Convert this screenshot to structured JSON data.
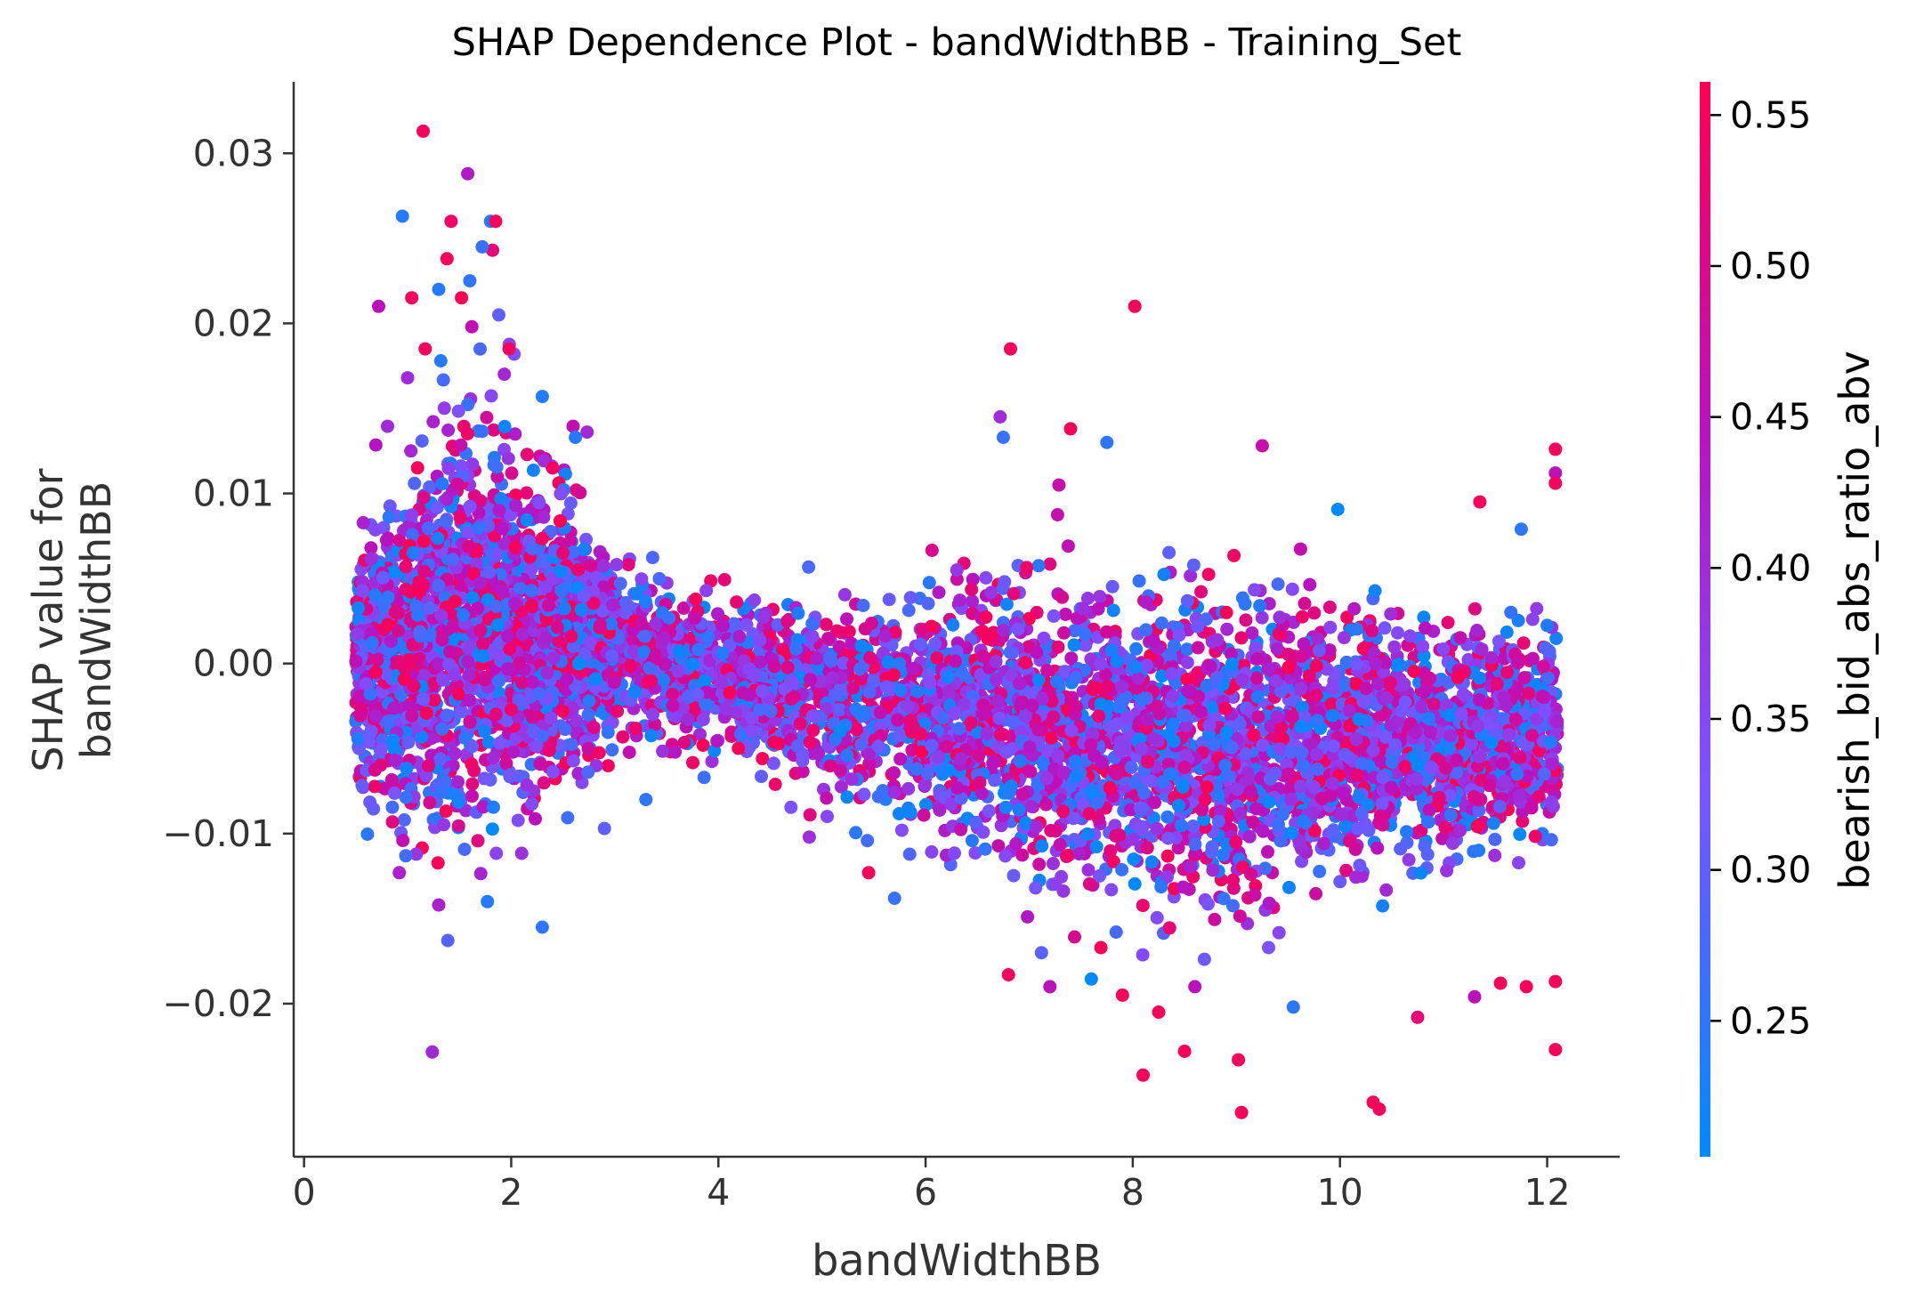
{
  "chart_data": {
    "type": "scatter",
    "title": "SHAP Dependence Plot - bandWidthBB - Training_Set",
    "xlabel": "bandWidthBB",
    "ylabel_lines": [
      "SHAP value for",
      "bandWidthBB"
    ],
    "xlim": [
      -0.1,
      12.7
    ],
    "ylim": [
      -0.029,
      0.0342
    ],
    "x_ticks": [
      0,
      2,
      4,
      6,
      8,
      10,
      12
    ],
    "x_tick_labels": [
      "0",
      "2",
      "4",
      "6",
      "8",
      "10",
      "12"
    ],
    "y_ticks": [
      0.03,
      0.02,
      0.01,
      0.0,
      -0.01,
      -0.02
    ],
    "y_tick_labels": [
      "0.03",
      "0.02",
      "0.01",
      "0.00",
      "−0.01",
      "−0.02"
    ],
    "colorbar": {
      "label": "bearish_bid_abs_ratio_abv",
      "range": [
        0.205,
        0.561
      ],
      "ticks": [
        0.55,
        0.5,
        0.45,
        0.4,
        0.35,
        0.3,
        0.25
      ],
      "tick_labels": [
        "0.55",
        "0.50",
        "0.45",
        "0.40",
        "0.35",
        "0.30",
        "0.25"
      ],
      "colors": [
        "#008afb",
        "#7c52ff",
        "#b911be",
        "#ff0052"
      ]
    },
    "approximate_points": true,
    "series_envelope": [
      {
        "x": 0.5,
        "mean": 0.0,
        "spread": 0.0055
      },
      {
        "x": 1.0,
        "mean": 0.001,
        "spread": 0.0085
      },
      {
        "x": 1.5,
        "mean": 0.002,
        "spread": 0.01
      },
      {
        "x": 2.0,
        "mean": 0.002,
        "spread": 0.0085
      },
      {
        "x": 2.5,
        "mean": 0.0015,
        "spread": 0.0065
      },
      {
        "x": 3.0,
        "mean": 0.0005,
        "spread": 0.004
      },
      {
        "x": 4.0,
        "mean": -0.0005,
        "spread": 0.0035
      },
      {
        "x": 4.6,
        "mean": -0.0015,
        "spread": 0.0045
      },
      {
        "x": 5.0,
        "mean": -0.002,
        "spread": 0.0045
      },
      {
        "x": 6.0,
        "mean": -0.003,
        "spread": 0.005
      },
      {
        "x": 6.5,
        "mean": -0.003,
        "spread": 0.0075
      },
      {
        "x": 7.0,
        "mean": -0.004,
        "spread": 0.0075
      },
      {
        "x": 8.0,
        "mean": -0.005,
        "spread": 0.0075
      },
      {
        "x": 9.0,
        "mean": -0.005,
        "spread": 0.0075
      },
      {
        "x": 10.0,
        "mean": -0.0045,
        "spread": 0.0065
      },
      {
        "x": 11.0,
        "mean": -0.0045,
        "spread": 0.0055
      },
      {
        "x": 12.1,
        "mean": -0.004,
        "spread": 0.005
      }
    ],
    "extreme_points": [
      {
        "x": 1.15,
        "y": 0.0313,
        "c": 0.55
      },
      {
        "x": 1.58,
        "y": 0.0288,
        "c": 0.43
      },
      {
        "x": 0.95,
        "y": 0.0263,
        "c": 0.24
      },
      {
        "x": 1.42,
        "y": 0.026,
        "c": 0.54
      },
      {
        "x": 1.8,
        "y": 0.026,
        "c": 0.24
      },
      {
        "x": 1.85,
        "y": 0.026,
        "c": 0.55
      },
      {
        "x": 1.82,
        "y": 0.0243,
        "c": 0.52
      },
      {
        "x": 1.38,
        "y": 0.0238,
        "c": 0.55
      },
      {
        "x": 1.72,
        "y": 0.0245,
        "c": 0.26
      },
      {
        "x": 1.6,
        "y": 0.0225,
        "c": 0.25
      },
      {
        "x": 1.3,
        "y": 0.022,
        "c": 0.24
      },
      {
        "x": 1.04,
        "y": 0.0215,
        "c": 0.55
      },
      {
        "x": 0.72,
        "y": 0.021,
        "c": 0.45
      },
      {
        "x": 1.52,
        "y": 0.0215,
        "c": 0.56
      },
      {
        "x": 1.88,
        "y": 0.0205,
        "c": 0.3
      },
      {
        "x": 1.62,
        "y": 0.0198,
        "c": 0.46
      },
      {
        "x": 1.98,
        "y": 0.0185,
        "c": 0.55
      },
      {
        "x": 1.17,
        "y": 0.0185,
        "c": 0.55
      },
      {
        "x": 1.32,
        "y": 0.0178,
        "c": 0.24
      },
      {
        "x": 1.0,
        "y": 0.0168,
        "c": 0.4
      },
      {
        "x": 2.3,
        "y": 0.0157,
        "c": 0.24
      },
      {
        "x": 2.62,
        "y": 0.0133,
        "c": 0.24
      },
      {
        "x": 8.02,
        "y": 0.021,
        "c": 0.55
      },
      {
        "x": 6.82,
        "y": 0.0185,
        "c": 0.55
      },
      {
        "x": 6.72,
        "y": 0.0145,
        "c": 0.4
      },
      {
        "x": 6.75,
        "y": 0.0133,
        "c": 0.26
      },
      {
        "x": 7.4,
        "y": 0.0138,
        "c": 0.55
      },
      {
        "x": 7.75,
        "y": 0.013,
        "c": 0.25
      },
      {
        "x": 9.25,
        "y": 0.0128,
        "c": 0.47
      },
      {
        "x": 12.08,
        "y": 0.0126,
        "c": 0.55
      },
      {
        "x": 12.08,
        "y": 0.0112,
        "c": 0.45
      },
      {
        "x": 12.08,
        "y": 0.0106,
        "c": 0.55
      },
      {
        "x": 11.75,
        "y": 0.0079,
        "c": 0.25
      },
      {
        "x": 11.35,
        "y": 0.0095,
        "c": 0.55
      },
      {
        "x": 0.92,
        "y": -0.0123,
        "c": 0.42
      },
      {
        "x": 1.3,
        "y": -0.0142,
        "c": 0.42
      },
      {
        "x": 1.77,
        "y": -0.014,
        "c": 0.24
      },
      {
        "x": 2.3,
        "y": -0.0155,
        "c": 0.25
      },
      {
        "x": 2.9,
        "y": -0.0097,
        "c": 0.3
      },
      {
        "x": 3.3,
        "y": -0.008,
        "c": 0.25
      },
      {
        "x": 5.7,
        "y": -0.0138,
        "c": 0.26
      },
      {
        "x": 5.45,
        "y": -0.0123,
        "c": 0.55
      },
      {
        "x": 6.8,
        "y": -0.0183,
        "c": 0.55
      },
      {
        "x": 7.2,
        "y": -0.019,
        "c": 0.45
      },
      {
        "x": 7.9,
        "y": -0.0195,
        "c": 0.55
      },
      {
        "x": 8.1,
        "y": -0.0242,
        "c": 0.55
      },
      {
        "x": 8.25,
        "y": -0.0205,
        "c": 0.55
      },
      {
        "x": 8.5,
        "y": -0.0228,
        "c": 0.55
      },
      {
        "x": 8.6,
        "y": -0.019,
        "c": 0.45
      },
      {
        "x": 9.02,
        "y": -0.0233,
        "c": 0.55
      },
      {
        "x": 9.05,
        "y": -0.0264,
        "c": 0.55
      },
      {
        "x": 9.55,
        "y": -0.0202,
        "c": 0.25
      },
      {
        "x": 10.32,
        "y": -0.0258,
        "c": 0.55
      },
      {
        "x": 10.38,
        "y": -0.0262,
        "c": 0.55
      },
      {
        "x": 10.75,
        "y": -0.0208,
        "c": 0.52
      },
      {
        "x": 11.3,
        "y": -0.0196,
        "c": 0.45
      },
      {
        "x": 11.55,
        "y": -0.0188,
        "c": 0.55
      },
      {
        "x": 11.8,
        "y": -0.019,
        "c": 0.55
      },
      {
        "x": 12.08,
        "y": -0.0187,
        "c": 0.55
      },
      {
        "x": 12.08,
        "y": -0.0227,
        "c": 0.55
      }
    ]
  }
}
